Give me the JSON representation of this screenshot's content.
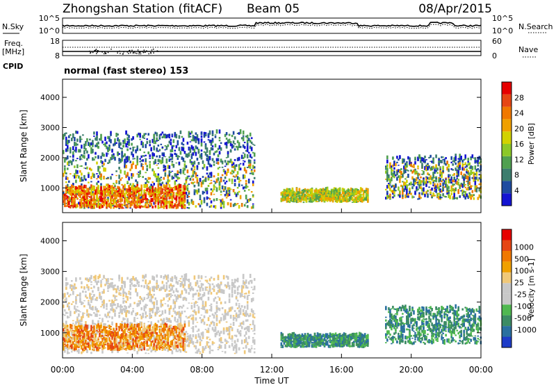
{
  "header": {
    "title": "Zhongshan Station (fitACF)",
    "beam": "Beam 05",
    "date": "08/Apr/2015"
  },
  "side_labels": {
    "nsky": "N.Sky",
    "freq": "Freq.",
    "freq_unit": "[MHz]",
    "cpid": "CPID",
    "nsearch": "N.Search",
    "nave": "Nave"
  },
  "cpid_text": "normal (fast stereo) 153",
  "noise_panel": {
    "left_ticks": [
      "10^5",
      "10^0"
    ],
    "right_ticks": [
      "10^5",
      "10^0"
    ]
  },
  "freq_panel": {
    "left_ticks": [
      "18",
      "8"
    ],
    "right_ticks": [
      "60",
      "0"
    ]
  },
  "chart_data": [
    {
      "type": "heatmap",
      "name": "power",
      "xlabel": "Time UT",
      "ylabel": "Slant Range [km]",
      "x_tick_labels": [
        "00:00",
        "04:00",
        "08:00",
        "12:00",
        "16:00",
        "20:00",
        "00:00"
      ],
      "x_range_hours": [
        0,
        24
      ],
      "y_range_km": [
        180,
        4600
      ],
      "y_ticks": [
        1000,
        2000,
        3000,
        4000
      ],
      "colorbar": {
        "label": "Power [dB]",
        "ticks": [
          "4",
          "8",
          "12",
          "16",
          "20",
          "24",
          "28"
        ],
        "range": [
          0,
          32
        ],
        "colors": [
          "#1414d2",
          "#1e4ba0",
          "#3c7d6e",
          "#50a050",
          "#8cc828",
          "#d2d200",
          "#f0a000",
          "#f07800",
          "#e64614",
          "#e60000"
        ]
      },
      "echo_regions": [
        {
          "t0": 0.0,
          "t1": 11.0,
          "r0": 300,
          "r1": 2800,
          "dominant": "mixed"
        },
        {
          "t0": 0.0,
          "t1": 7.0,
          "r0": 300,
          "r1": 1000,
          "dominant": "high"
        },
        {
          "t0": 12.5,
          "t1": 17.5,
          "r0": 500,
          "r1": 900,
          "dominant": "moderate"
        },
        {
          "t0": 18.5,
          "t1": 24.0,
          "r0": 600,
          "r1": 2000,
          "dominant": "mixed"
        }
      ]
    },
    {
      "type": "heatmap",
      "name": "velocity",
      "xlabel": "Time UT",
      "ylabel": "Slant Range [km]",
      "x_tick_labels": [
        "00:00",
        "04:00",
        "08:00",
        "12:00",
        "16:00",
        "20:00",
        "00:00"
      ],
      "x_range_hours": [
        0,
        24
      ],
      "y_range_km": [
        180,
        4600
      ],
      "y_ticks": [
        1000,
        2000,
        3000,
        4000
      ],
      "colorbar": {
        "label": "Velocity [m s-1]",
        "ticks": [
          "1000",
          "500",
          "100",
          "25",
          "-25",
          "-100",
          "-500",
          "-1000"
        ],
        "colors": [
          "#1e3cc8",
          "#2a70a0",
          "#3c8c64",
          "#50b850",
          "#c8c8c8",
          "#c8c8c8",
          "#f0c878",
          "#f0a000",
          "#f07800",
          "#e64614",
          "#e60000"
        ]
      },
      "echo_regions": [
        {
          "t0": 0.0,
          "t1": 11.0,
          "r0": 300,
          "r1": 2800,
          "dominant": "ground-scatter"
        },
        {
          "t0": 0.0,
          "t1": 7.0,
          "r0": 400,
          "r1": 1200,
          "dominant": "negative"
        },
        {
          "t0": 12.5,
          "t1": 17.5,
          "r0": 500,
          "r1": 900,
          "dominant": "positive"
        },
        {
          "t0": 18.5,
          "t1": 24.0,
          "r0": 600,
          "r1": 1800,
          "dominant": "positive"
        }
      ]
    }
  ]
}
